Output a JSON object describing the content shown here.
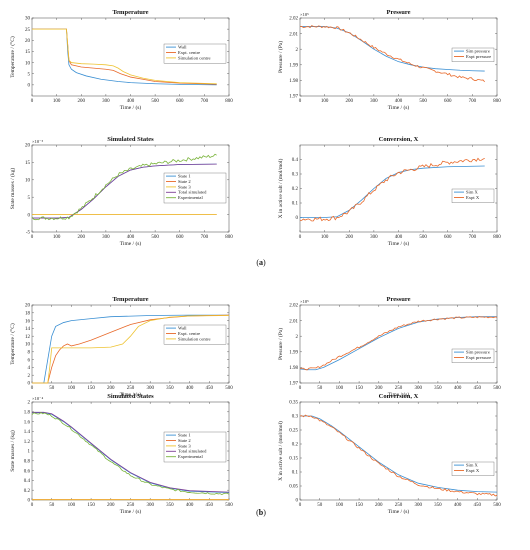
{
  "panel_labels": [
    {
      "label": "(a)",
      "letter": "a"
    },
    {
      "label": "(b)",
      "letter": "b"
    }
  ],
  "colors": {
    "blue": "#3a8fd3",
    "orange": "#e8692a",
    "yellow": "#eec332",
    "purple": "#7e3f96",
    "green": "#79b33a"
  },
  "chart_data": [
    {
      "id": "a-temperature",
      "type": "line",
      "title": "Temperature",
      "xlabel": "Time / (s)",
      "ylabel": "Temperature / (°C)",
      "xlim": [
        0,
        800
      ],
      "ylim": [
        -5,
        30
      ],
      "xticks": [
        0,
        100,
        200,
        300,
        400,
        500,
        600,
        700,
        800
      ],
      "yticks": [
        0,
        5,
        10,
        15,
        20,
        25,
        30
      ],
      "legend": "right",
      "series": [
        {
          "name": "Wall",
          "color": "#3a8fd3",
          "x": [
            0,
            140,
            145,
            150,
            160,
            180,
            220,
            280,
            350,
            400,
            500,
            600,
            750
          ],
          "y": [
            25,
            25,
            15,
            9,
            7,
            5.5,
            4,
            2.5,
            1.5,
            1,
            0.5,
            0.2,
            0
          ]
        },
        {
          "name": "Expt. centre",
          "color": "#e8692a",
          "x": [
            0,
            140,
            145,
            150,
            160,
            200,
            250,
            300,
            330,
            360,
            400,
            450,
            500,
            600,
            750
          ],
          "y": [
            25,
            25,
            18,
            11,
            9,
            8,
            7.5,
            7,
            6.5,
            5,
            3.5,
            2.5,
            1.5,
            0.8,
            0.3
          ]
        },
        {
          "name": "Simulation centre",
          "color": "#eec332",
          "x": [
            0,
            140,
            145,
            150,
            160,
            200,
            250,
            300,
            330,
            350,
            370,
            400,
            450,
            500,
            600,
            750
          ],
          "y": [
            25,
            25,
            18,
            11,
            10,
            9.5,
            9.3,
            9,
            8.5,
            7.5,
            6,
            4.5,
            3,
            2,
            1,
            0.5
          ]
        }
      ]
    },
    {
      "id": "a-pressure",
      "type": "line",
      "title": "Pressure",
      "xlabel": "Time / (s)",
      "ylabel": "Pressure / (Pa)",
      "exponent": "×10⁵",
      "xlim": [
        0,
        800
      ],
      "ylim": [
        1.97,
        2.02
      ],
      "xticks": [
        0,
        100,
        200,
        300,
        400,
        500,
        600,
        700,
        800
      ],
      "yticks": [
        1.97,
        1.98,
        1.99,
        2.0,
        2.01,
        2.02
      ],
      "ytick_labels": [
        "1.97",
        "1.98",
        "1.99",
        "2",
        "2.01",
        "2.02"
      ],
      "legend": "right",
      "series": [
        {
          "name": "Sim pressure",
          "color": "#3a8fd3",
          "x": [
            0,
            50,
            100,
            150,
            200,
            250,
            300,
            350,
            400,
            450,
            500,
            550,
            600,
            650,
            700,
            750
          ],
          "y": [
            2.0145,
            2.0145,
            2.0145,
            2.0135,
            2.0105,
            2.0055,
            2.0,
            1.9955,
            1.992,
            1.99,
            1.9885,
            1.9875,
            1.987,
            1.9865,
            1.9862,
            1.986
          ]
        },
        {
          "name": "Expt pressure",
          "color": "#e8692a",
          "x": [
            0,
            50,
            100,
            150,
            200,
            250,
            300,
            350,
            400,
            450,
            500,
            550,
            600,
            650,
            700,
            750
          ],
          "y": [
            2.0145,
            2.0145,
            2.0145,
            2.0138,
            2.0105,
            2.006,
            2.001,
            1.997,
            1.9935,
            1.9905,
            1.988,
            1.986,
            1.984,
            1.982,
            1.981,
            1.9795
          ],
          "noise": 0.0008
        }
      ]
    },
    {
      "id": "a-states",
      "type": "line",
      "title": "Simulated States",
      "xlabel": "Time / (s)",
      "ylabel": "State masses / (kg)",
      "exponent": "×10⁻⁵",
      "xlim": [
        0,
        800
      ],
      "ylim": [
        -5,
        20
      ],
      "xticks": [
        0,
        100,
        200,
        300,
        400,
        500,
        600,
        700,
        800
      ],
      "yticks": [
        -5,
        0,
        5,
        10,
        15,
        20
      ],
      "legend": "right",
      "series": [
        {
          "name": "State 1",
          "color": "#3a8fd3",
          "x": [
            0,
            100,
            150,
            200,
            250,
            300,
            350,
            400,
            450,
            500,
            600,
            750
          ],
          "y": [
            -1,
            -1,
            -0.8,
            1.5,
            4.5,
            8,
            11,
            12.8,
            13.6,
            14,
            14.4,
            14.5
          ]
        },
        {
          "name": "State 2",
          "color": "#e8692a",
          "x": [
            0,
            750
          ],
          "y": [
            0,
            0
          ]
        },
        {
          "name": "State 3",
          "color": "#eec332",
          "x": [
            0,
            750
          ],
          "y": [
            0,
            0
          ]
        },
        {
          "name": "Total simulated",
          "color": "#7e3f96",
          "x": [
            0,
            100,
            150,
            200,
            250,
            300,
            350,
            400,
            450,
            500,
            600,
            750
          ],
          "y": [
            -1,
            -1,
            -0.8,
            1.5,
            4.5,
            8,
            11,
            12.8,
            13.6,
            14,
            14.4,
            14.5
          ]
        },
        {
          "name": "Experimental",
          "color": "#79b33a",
          "x": [
            0,
            100,
            150,
            200,
            250,
            300,
            350,
            400,
            450,
            500,
            600,
            750
          ],
          "y": [
            -1,
            -1,
            -0.8,
            1.8,
            5,
            8.5,
            11.5,
            13,
            14,
            14.6,
            15.6,
            17
          ],
          "noise": 0.5
        }
      ]
    },
    {
      "id": "a-conversion",
      "type": "line",
      "title": "Conversion, X",
      "xlabel": "Time / (s)",
      "ylabel": "X in active salt / (mol/mol)",
      "xlim": [
        0,
        800
      ],
      "ylim": [
        -0.1,
        0.5
      ],
      "xticks": [
        0,
        100,
        200,
        300,
        400,
        500,
        600,
        700,
        800
      ],
      "yticks": [
        0,
        0.1,
        0.2,
        0.3,
        0.4
      ],
      "legend": "right",
      "series": [
        {
          "name": "Sim X",
          "color": "#3a8fd3",
          "x": [
            0,
            100,
            150,
            200,
            250,
            300,
            350,
            400,
            450,
            500,
            600,
            750
          ],
          "y": [
            0,
            0,
            0.005,
            0.05,
            0.12,
            0.2,
            0.27,
            0.31,
            0.33,
            0.34,
            0.35,
            0.355
          ]
        },
        {
          "name": "Expt X",
          "color": "#e8692a",
          "x": [
            0,
            100,
            150,
            200,
            250,
            300,
            350,
            400,
            450,
            500,
            600,
            750
          ],
          "y": [
            -0.01,
            -0.01,
            0,
            0.04,
            0.11,
            0.19,
            0.26,
            0.31,
            0.33,
            0.35,
            0.38,
            0.41
          ],
          "noise": 0.015
        }
      ]
    },
    {
      "id": "b-temperature",
      "type": "line",
      "title": "Temperature",
      "xlabel": "Time / (s)",
      "ylabel": "Temperature / (°C)",
      "xlim": [
        0,
        500
      ],
      "ylim": [
        0,
        20
      ],
      "xticks": [
        0,
        50,
        100,
        150,
        200,
        250,
        300,
        350,
        400,
        450,
        500
      ],
      "yticks": [
        0,
        2,
        4,
        6,
        8,
        10,
        12,
        14,
        16,
        18,
        20
      ],
      "legend": "right",
      "series": [
        {
          "name": "Wall",
          "color": "#3a8fd3",
          "x": [
            0,
            30,
            40,
            50,
            60,
            80,
            100,
            150,
            200,
            300,
            400,
            500
          ],
          "y": [
            0,
            0,
            6,
            12,
            14.5,
            15.5,
            16,
            16.5,
            17,
            17.3,
            17.4,
            17.4
          ]
        },
        {
          "name": "Expt. centre",
          "color": "#e8692a",
          "x": [
            0,
            40,
            50,
            60,
            70,
            80,
            90,
            100,
            120,
            150,
            200,
            250,
            300,
            350,
            400,
            500
          ],
          "y": [
            0,
            0,
            4,
            7,
            8.5,
            9.5,
            10,
            9.5,
            10,
            11,
            13,
            15,
            16.2,
            16.8,
            17.2,
            17.4
          ]
        },
        {
          "name": "Simulation centre",
          "color": "#eec332",
          "x": [
            0,
            40,
            45,
            50,
            100,
            150,
            200,
            230,
            250,
            270,
            300,
            350,
            400,
            500
          ],
          "y": [
            0,
            0,
            4,
            9,
            9,
            9,
            9.2,
            10,
            12,
            14.5,
            16,
            16.9,
            17.2,
            17.3
          ]
        }
      ]
    },
    {
      "id": "b-pressure",
      "type": "line",
      "title": "Pressure",
      "xlabel": "Time / (s)",
      "ylabel": "Pressure / (Pa)",
      "exponent": "×10⁵",
      "xlim": [
        0,
        500
      ],
      "ylim": [
        1.97,
        2.02
      ],
      "xticks": [
        0,
        50,
        100,
        150,
        200,
        250,
        300,
        350,
        400,
        450,
        500
      ],
      "yticks": [
        1.97,
        1.98,
        1.99,
        2.0,
        2.01,
        2.02
      ],
      "ytick_labels": [
        "1.97",
        "1.98",
        "1.99",
        "2",
        "2.01",
        "2.02"
      ],
      "legend": "right",
      "series": [
        {
          "name": "Sim pressure",
          "color": "#3a8fd3",
          "x": [
            0,
            20,
            40,
            60,
            100,
            150,
            200,
            250,
            300,
            350,
            400,
            450,
            500
          ],
          "y": [
            1.979,
            1.9785,
            1.9785,
            1.98,
            1.985,
            1.992,
            1.999,
            2.005,
            2.009,
            2.011,
            2.012,
            2.0125,
            2.0125
          ]
        },
        {
          "name": "Expt pressure",
          "color": "#e8692a",
          "x": [
            0,
            20,
            40,
            60,
            100,
            150,
            200,
            250,
            300,
            350,
            400,
            450,
            500
          ],
          "y": [
            1.979,
            1.979,
            1.9795,
            1.9815,
            1.987,
            1.993,
            2.0,
            2.006,
            2.0095,
            2.011,
            2.0118,
            2.0122,
            2.0124
          ],
          "noise": 0.0006
        }
      ]
    },
    {
      "id": "b-states",
      "type": "line",
      "title": "Simulated States",
      "xlabel": "Time / (s)",
      "ylabel": "State masses / (kg)",
      "exponent": "×10⁻⁴",
      "xlim": [
        0,
        500
      ],
      "ylim": [
        0,
        2
      ],
      "xticks": [
        0,
        50,
        100,
        150,
        200,
        250,
        300,
        350,
        400,
        450,
        500
      ],
      "yticks": [
        0,
        0.2,
        0.4,
        0.6,
        0.8,
        1,
        1.2,
        1.4,
        1.6,
        1.8,
        2
      ],
      "legend": "right",
      "series": [
        {
          "name": "State 1",
          "color": "#3a8fd3",
          "x": [
            0,
            30,
            50,
            80,
            100,
            150,
            200,
            250,
            300,
            350,
            400,
            500
          ],
          "y": [
            1.78,
            1.78,
            1.75,
            1.6,
            1.48,
            1.15,
            0.82,
            0.55,
            0.35,
            0.24,
            0.18,
            0.15
          ]
        },
        {
          "name": "State 2",
          "color": "#e8692a",
          "x": [
            0,
            500
          ],
          "y": [
            0.01,
            0.01
          ]
        },
        {
          "name": "State 3",
          "color": "#eec332",
          "x": [
            0,
            500
          ],
          "y": [
            0.005,
            0.005
          ]
        },
        {
          "name": "Total simulated",
          "color": "#7e3f96",
          "x": [
            0,
            30,
            50,
            80,
            100,
            150,
            200,
            250,
            300,
            350,
            400,
            500
          ],
          "y": [
            1.79,
            1.79,
            1.76,
            1.61,
            1.49,
            1.16,
            0.83,
            0.56,
            0.36,
            0.25,
            0.19,
            0.16
          ]
        },
        {
          "name": "Experimental",
          "color": "#79b33a",
          "x": [
            0,
            30,
            50,
            80,
            100,
            150,
            200,
            250,
            300,
            350,
            400,
            500
          ],
          "y": [
            1.76,
            1.77,
            1.72,
            1.57,
            1.45,
            1.12,
            0.78,
            0.5,
            0.32,
            0.22,
            0.16,
            0.12
          ],
          "noise": 0.02
        }
      ]
    },
    {
      "id": "b-conversion",
      "type": "line",
      "title": "Conversion, X",
      "xlabel": "Time / (s)",
      "ylabel": "X in active salt / (mol/mol)",
      "xlim": [
        0,
        500
      ],
      "ylim": [
        0,
        0.35
      ],
      "xticks": [
        0,
        50,
        100,
        150,
        200,
        250,
        300,
        350,
        400,
        450,
        500
      ],
      "yticks": [
        0,
        0.05,
        0.1,
        0.15,
        0.2,
        0.25,
        0.3,
        0.35
      ],
      "legend": "right",
      "series": [
        {
          "name": "Sim X",
          "color": "#3a8fd3",
          "x": [
            0,
            30,
            50,
            80,
            100,
            150,
            200,
            250,
            300,
            350,
            400,
            450,
            500
          ],
          "y": [
            0.3,
            0.3,
            0.29,
            0.265,
            0.245,
            0.19,
            0.135,
            0.09,
            0.06,
            0.045,
            0.035,
            0.03,
            0.028
          ]
        },
        {
          "name": "Expt X",
          "color": "#e8692a",
          "x": [
            0,
            30,
            50,
            80,
            100,
            150,
            200,
            250,
            300,
            350,
            400,
            450,
            500
          ],
          "y": [
            0.3,
            0.3,
            0.285,
            0.26,
            0.24,
            0.185,
            0.13,
            0.085,
            0.055,
            0.04,
            0.03,
            0.022,
            0.018
          ],
          "noise": 0.004
        }
      ]
    }
  ]
}
